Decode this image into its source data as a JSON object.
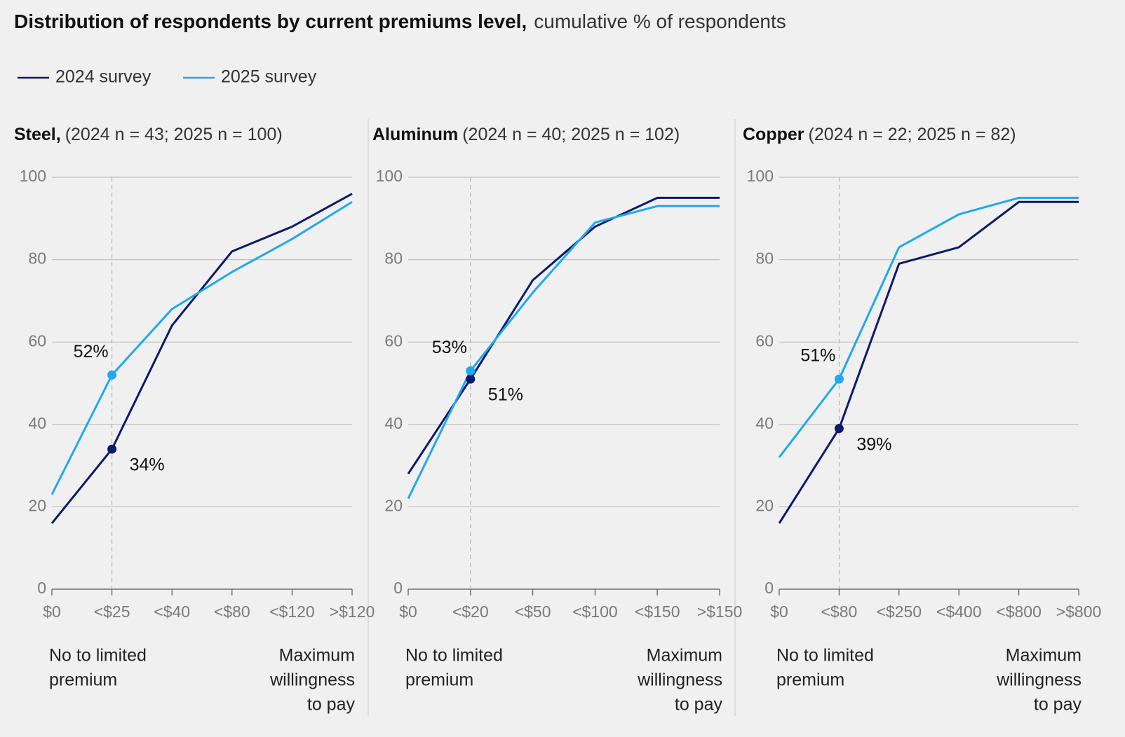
{
  "title": "Distribution of respondents by current premiums level,",
  "subtitle": "cumulative % of respondents",
  "chart_data": [
    {
      "type": "line",
      "title": "Steel,",
      "subtitle": "(2024 n = 43; 2025 n = 100)",
      "categories": [
        "$0",
        "<$25",
        "<$40",
        "<$80",
        "<$120",
        ">$120"
      ],
      "series": [
        {
          "name": "2024 survey",
          "color": "#0b1a6b",
          "values": [
            16,
            34,
            64,
            82,
            88,
            96
          ],
          "value_labels": [
            null,
            "34%",
            null,
            null,
            null,
            null
          ]
        },
        {
          "name": "2025 survey",
          "color": "#1fa9ee",
          "values": [
            23,
            52,
            68,
            77,
            85,
            94
          ],
          "value_labels": [
            null,
            "52%",
            null,
            null,
            null,
            null
          ]
        }
      ],
      "ylim": [
        0,
        100
      ],
      "yticks": [
        0,
        20,
        40,
        60,
        80,
        100
      ],
      "grid": true,
      "note_left": [
        "No to limited",
        "premium"
      ],
      "note_right": [
        "Maximum",
        "willingness",
        "to pay"
      ]
    },
    {
      "type": "line",
      "title": "Aluminum",
      "subtitle": "(2024 n = 40; 2025 n = 102)",
      "categories": [
        "$0",
        "<$20",
        "<$50",
        "<$100",
        "<$150",
        ">$150"
      ],
      "series": [
        {
          "name": "2024 survey",
          "color": "#0b1a6b",
          "values": [
            28,
            51,
            75,
            88,
            95,
            95
          ],
          "value_labels": [
            null,
            "51%",
            null,
            null,
            null,
            null
          ]
        },
        {
          "name": "2025 survey",
          "color": "#1fa9ee",
          "values": [
            22,
            53,
            72,
            89,
            93,
            93
          ],
          "value_labels": [
            null,
            "53%",
            null,
            null,
            null,
            null
          ]
        }
      ],
      "ylim": [
        0,
        100
      ],
      "yticks": [
        0,
        20,
        40,
        60,
        80,
        100
      ],
      "grid": true,
      "note_left": [
        "No to limited",
        "premium"
      ],
      "note_right": [
        "Maximum",
        "willingness",
        "to pay"
      ]
    },
    {
      "type": "line",
      "title": "Copper",
      "subtitle": "(2024 n = 22; 2025 n = 82)",
      "categories": [
        "$0",
        "<$80",
        "<$250",
        "<$400",
        "<$800",
        ">$800"
      ],
      "series": [
        {
          "name": "2024 survey",
          "color": "#0b1a6b",
          "values": [
            16,
            39,
            79,
            83,
            94,
            94
          ],
          "value_labels": [
            null,
            "39%",
            null,
            null,
            null,
            null
          ]
        },
        {
          "name": "2025 survey",
          "color": "#1fa9ee",
          "values": [
            32,
            51,
            83,
            91,
            95,
            95
          ],
          "value_labels": [
            null,
            "51%",
            null,
            null,
            null,
            null
          ]
        }
      ],
      "ylim": [
        0,
        100
      ],
      "yticks": [
        0,
        20,
        40,
        60,
        80,
        100
      ],
      "grid": true,
      "note_left": [
        "No to limited",
        "premium"
      ],
      "note_right": [
        "Maximum",
        "willingness",
        "to pay"
      ]
    }
  ]
}
